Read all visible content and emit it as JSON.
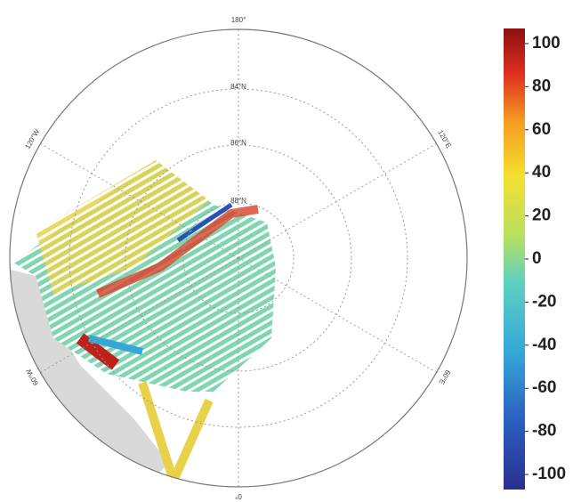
{
  "map": {
    "longitude_labels": [
      "180°",
      "120°W",
      "120°E",
      "60°W",
      "60°E",
      "0°"
    ],
    "latitude_labels": [
      "84°N",
      "86°N",
      "88°N"
    ]
  },
  "colorbar": {
    "range": [
      -107,
      107
    ],
    "ticks": [
      100,
      80,
      60,
      40,
      20,
      0,
      -20,
      -40,
      -60,
      -80,
      -100
    ]
  }
}
